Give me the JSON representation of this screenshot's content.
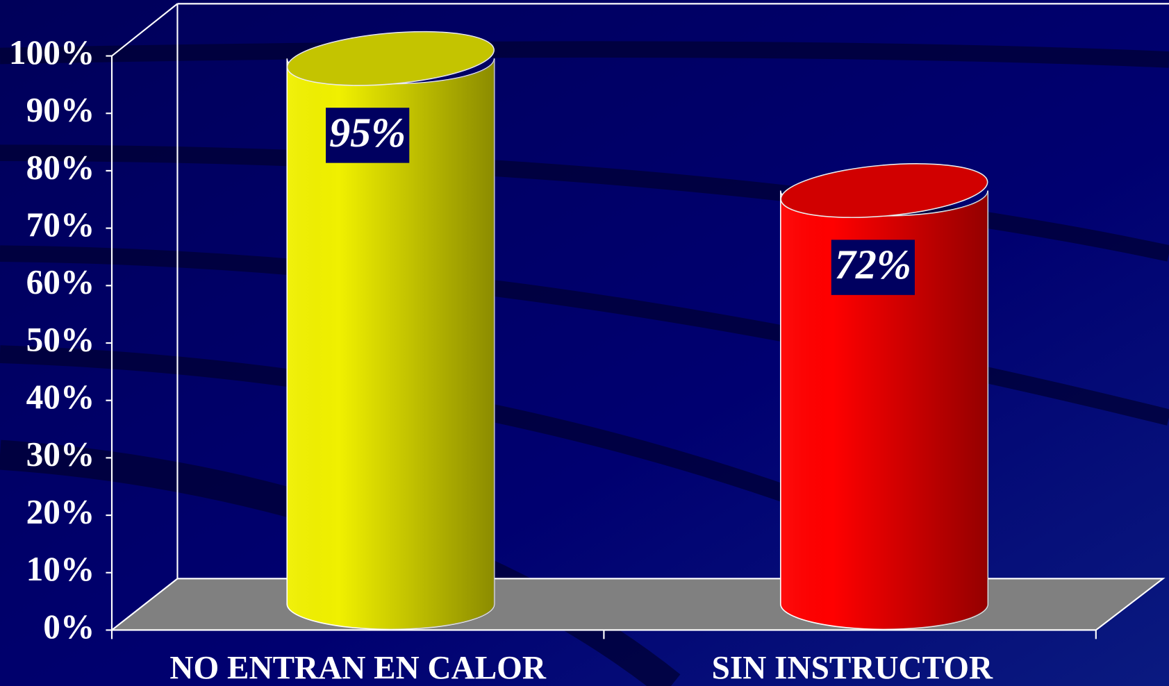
{
  "chart_data": {
    "type": "cylinder",
    "categories": [
      "NO ENTRAN EN CALOR",
      "SIN INSTRUCTOR"
    ],
    "values": [
      95,
      72
    ],
    "value_labels": [
      "95%",
      "72%"
    ],
    "colors": [
      "#f0f000",
      "#ff0000"
    ],
    "ylim": [
      0,
      100
    ],
    "yticks": [
      {
        "value": 0,
        "label": "0%"
      },
      {
        "value": 10,
        "label": "10%"
      },
      {
        "value": 20,
        "label": "20%"
      },
      {
        "value": 30,
        "label": "30%"
      },
      {
        "value": 40,
        "label": "40%"
      },
      {
        "value": 50,
        "label": "50%"
      },
      {
        "value": 60,
        "label": "60%"
      },
      {
        "value": 70,
        "label": "70%"
      },
      {
        "value": 80,
        "label": "80%"
      },
      {
        "value": 90,
        "label": "90%"
      },
      {
        "value": 100,
        "label": "100%"
      }
    ]
  }
}
